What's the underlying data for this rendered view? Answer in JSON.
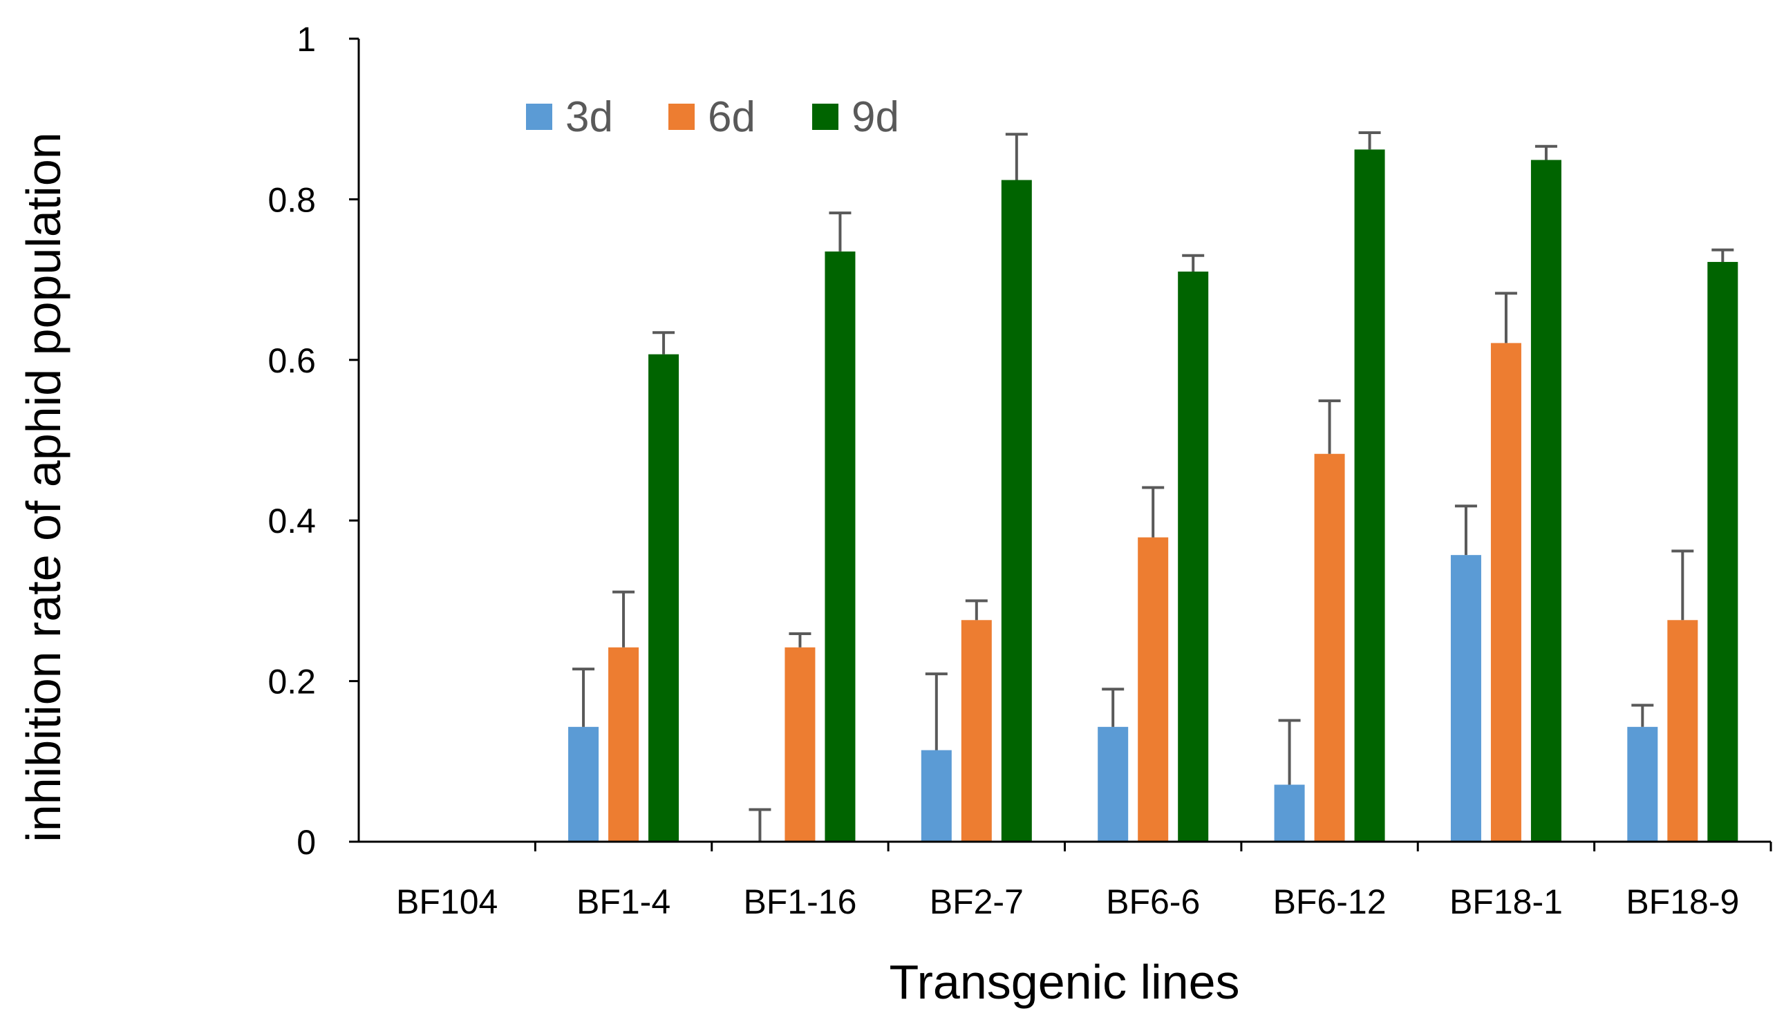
{
  "chart_data": {
    "type": "bar",
    "title": "",
    "xlabel": "Transgenic lines",
    "ylabel": "inhibition rate of aphid population",
    "ylim": [
      0,
      1
    ],
    "yticks": [
      0,
      0.2,
      0.4,
      0.6,
      0.8,
      1
    ],
    "ytick_labels": [
      "0",
      "0.2",
      "0.4",
      "0.6",
      "0.8",
      "1"
    ],
    "grid": false,
    "legend_position": "top-left",
    "categories": [
      "BF104",
      "BF1-4",
      "BF1-16",
      "BF2-7",
      "BF6-6",
      "BF6-12",
      "BF18-1",
      "BF18-9"
    ],
    "series": [
      {
        "name": "3d",
        "color": "#5B9BD5",
        "values": [
          0,
          0.143,
          0,
          0.114,
          0.143,
          0.071,
          0.357,
          0.143
        ],
        "errors": [
          0,
          0.072,
          0.04,
          0.095,
          0.047,
          0.08,
          0.061,
          0.027
        ]
      },
      {
        "name": "6d",
        "color": "#ED7D31",
        "values": [
          0,
          0.242,
          0.242,
          0.276,
          0.379,
          0.483,
          0.621,
          0.276
        ],
        "errors": [
          0,
          0.069,
          0.017,
          0.024,
          0.062,
          0.066,
          0.062,
          0.086
        ]
      },
      {
        "name": "9d",
        "color": "#006400",
        "values": [
          0,
          0.607,
          0.735,
          0.824,
          0.71,
          0.862,
          0.849,
          0.722
        ],
        "errors": [
          0,
          0.027,
          0.048,
          0.057,
          0.02,
          0.021,
          0.017,
          0.015
        ]
      }
    ],
    "error_bar_color": "#595959"
  }
}
